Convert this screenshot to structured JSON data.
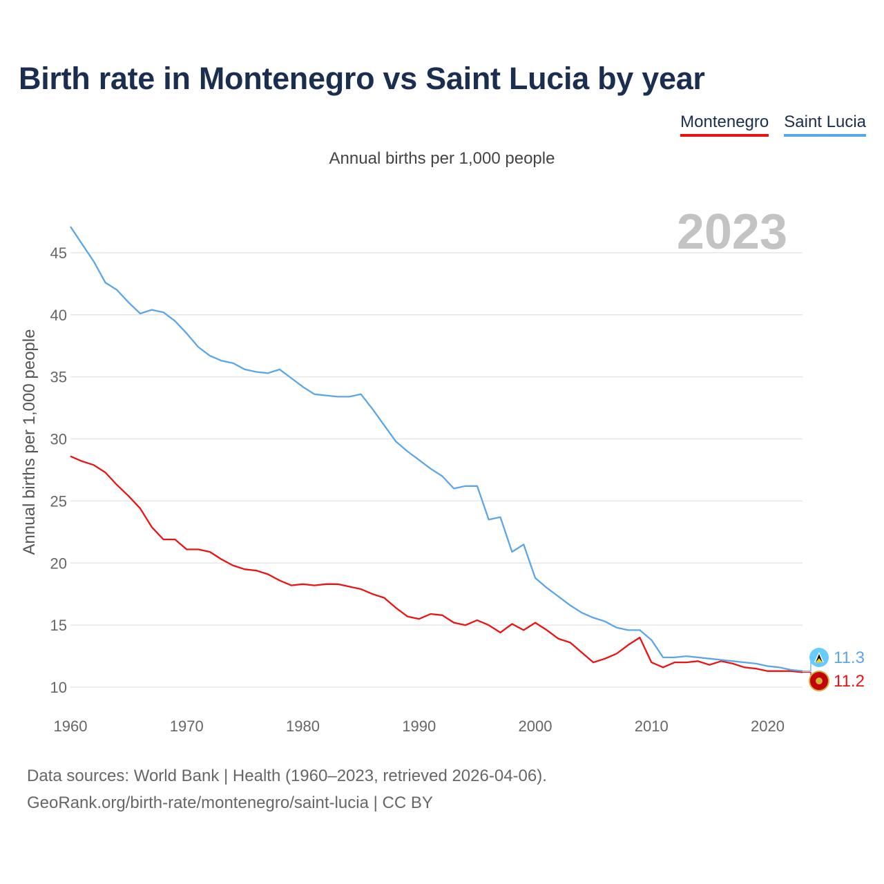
{
  "title": "Birth rate in Montenegro vs Saint Lucia by year",
  "subtitle": "Annual births per 1,000 people",
  "legend": [
    "Montenegro",
    "Saint Lucia"
  ],
  "year_label": "2023",
  "footer": {
    "line1": "Data sources: World Bank | Health (1960–2023, retrieved 2026-04-06).",
    "line2": "GeoRank.org/birth-rate/montenegro/saint-lucia | CC BY"
  },
  "colors": {
    "montenegro": "#ee1111",
    "saint_lucia": "#5aa6e8",
    "title": "#1a2f4f",
    "grid": "#e6e6e6"
  },
  "chart_data": {
    "type": "line",
    "title": "Birth rate in Montenegro vs Saint Lucia by year",
    "xlabel": "",
    "ylabel": "Annual births per 1,000 people",
    "xlim": [
      1960,
      2023
    ],
    "ylim": [
      8.5,
      48
    ],
    "xticks": [
      1960,
      1970,
      1980,
      1990,
      2000,
      2010,
      2020
    ],
    "yticks": [
      10,
      15,
      20,
      25,
      30,
      35,
      40,
      45
    ],
    "grid": true,
    "legend_position": "top-right",
    "x": [
      1960,
      1961,
      1962,
      1963,
      1964,
      1965,
      1966,
      1967,
      1968,
      1969,
      1970,
      1971,
      1972,
      1973,
      1974,
      1975,
      1976,
      1977,
      1978,
      1979,
      1980,
      1981,
      1982,
      1983,
      1984,
      1985,
      1986,
      1987,
      1988,
      1989,
      1990,
      1991,
      1992,
      1993,
      1994,
      1995,
      1996,
      1997,
      1998,
      1999,
      2000,
      2001,
      2002,
      2003,
      2004,
      2005,
      2006,
      2007,
      2008,
      2009,
      2010,
      2011,
      2012,
      2013,
      2014,
      2015,
      2016,
      2017,
      2018,
      2019,
      2020,
      2021,
      2022,
      2023
    ],
    "series": [
      {
        "name": "Montenegro",
        "color": "#ee1111",
        "end_label": "11.2",
        "values": [
          28.6,
          28.2,
          27.9,
          27.3,
          26.3,
          25.4,
          24.4,
          22.9,
          21.9,
          21.9,
          21.1,
          21.1,
          20.9,
          20.3,
          19.8,
          19.5,
          19.4,
          19.1,
          18.6,
          18.2,
          18.3,
          18.2,
          18.3,
          18.3,
          18.1,
          17.9,
          17.5,
          17.2,
          16.4,
          15.7,
          15.5,
          15.9,
          15.8,
          15.2,
          15.0,
          15.4,
          15.0,
          14.4,
          15.1,
          14.6,
          15.2,
          14.6,
          13.9,
          13.6,
          12.8,
          12.0,
          12.3,
          12.7,
          13.4,
          14.0,
          12.0,
          11.6,
          12.0,
          12.0,
          12.1,
          11.8,
          12.1,
          11.9,
          11.6,
          11.5,
          11.3,
          11.3,
          11.3,
          11.2
        ]
      },
      {
        "name": "Saint Lucia",
        "color": "#5aa6e8",
        "end_label": "11.3",
        "values": [
          47.1,
          45.7,
          44.3,
          42.6,
          42.0,
          41.0,
          40.1,
          40.4,
          40.2,
          39.5,
          38.5,
          37.4,
          36.7,
          36.3,
          36.1,
          35.6,
          35.4,
          35.3,
          35.6,
          34.9,
          34.2,
          33.6,
          33.5,
          33.4,
          33.4,
          33.6,
          32.4,
          31.1,
          29.8,
          29.0,
          28.3,
          27.6,
          27.0,
          26.0,
          26.2,
          26.2,
          23.5,
          23.7,
          20.9,
          21.5,
          18.8,
          18.0,
          17.3,
          16.6,
          16.0,
          15.6,
          15.3,
          14.8,
          14.6,
          14.6,
          13.8,
          12.4,
          12.4,
          12.5,
          12.4,
          12.3,
          12.2,
          12.1,
          12.0,
          11.9,
          11.7,
          11.6,
          11.4,
          11.3
        ]
      }
    ]
  }
}
